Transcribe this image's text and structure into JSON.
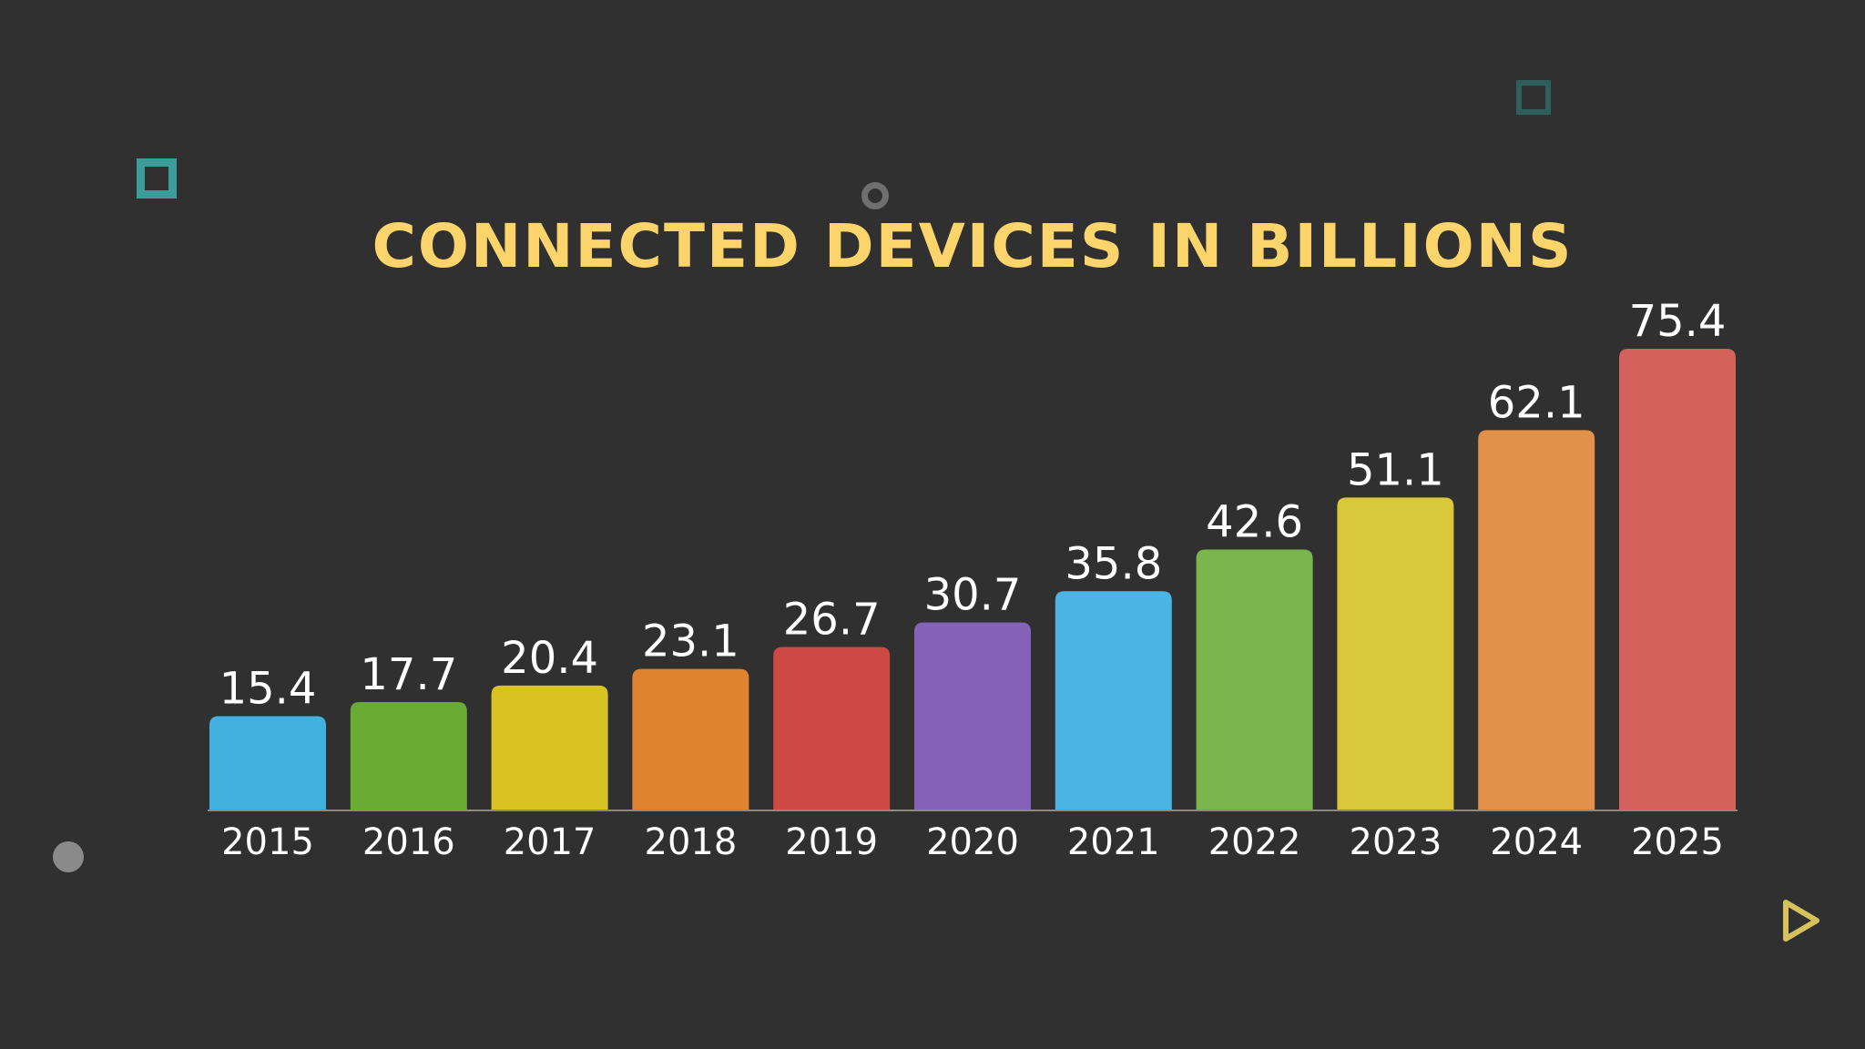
{
  "chart_data": {
    "type": "bar",
    "title": "CONNECTED DEVICES IN BILLIONS",
    "xlabel": "",
    "ylabel": "",
    "categories": [
      "2015",
      "2016",
      "2017",
      "2018",
      "2019",
      "2020",
      "2021",
      "2022",
      "2023",
      "2024",
      "2025"
    ],
    "values": [
      15.4,
      17.7,
      20.4,
      23.1,
      26.7,
      30.7,
      35.8,
      42.6,
      51.1,
      62.1,
      75.4
    ],
    "value_labels": [
      "15.4",
      "17.7",
      "20.4",
      "23.1",
      "26.7",
      "30.7",
      "35.8",
      "42.6",
      "51.1",
      "62.1",
      "75.4"
    ],
    "ylim": [
      0,
      75.4
    ],
    "grid": false,
    "legend": "none",
    "bar_colors": [
      "#43b1e0",
      "#6aab34",
      "#d8c322",
      "#df8330",
      "#cf4944",
      "#8563b8",
      "#4cb3e5",
      "#7ab54e",
      "#d9c83a",
      "#e2914a",
      "#d3625c"
    ],
    "colors": {
      "background": "#303030",
      "title": "#fbd56b",
      "labels": "#ffffff",
      "baseline": "#8e8a7e"
    }
  },
  "decorations": {
    "icons": [
      "hollow-square-icon",
      "faded-square-icon",
      "ring-icon",
      "dot-icon",
      "play-triangle-icon"
    ]
  }
}
